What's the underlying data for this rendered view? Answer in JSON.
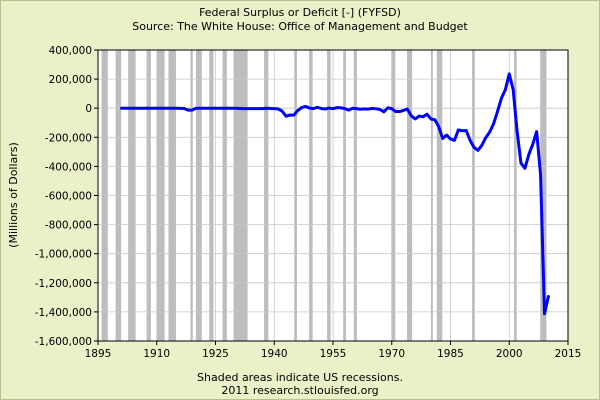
{
  "chart_data": {
    "type": "line",
    "title": "Federal Surplus or Deficit [-] (FYFSD)",
    "subtitle": "Source: The White House: Office of Management and Budget",
    "xlabel": "",
    "ylabel": "(Millions of Dollars)",
    "note": "Shaded areas indicate US recessions.",
    "credit": "2011 research.stlouisfed.org",
    "xlim": [
      1895,
      2015
    ],
    "ylim": [
      -1600000,
      400000
    ],
    "x_ticks": [
      "1895",
      "1910",
      "1925",
      "1940",
      "1955",
      "1970",
      "1985",
      "2000",
      "2015"
    ],
    "y_ticks": [
      "400,000",
      "200,000",
      "0",
      "-200,000",
      "-400,000",
      "-600,000",
      "-800,000",
      "-1,000,000",
      "-1,200,000",
      "-1,400,000",
      "-1,600,000"
    ],
    "grid": true,
    "legend": "none",
    "colors": {
      "line": "#0000ff",
      "recession": "#bdbdbd",
      "plot_bg": "#ffffff",
      "page_bg": "#eaf0c7"
    },
    "recessions": [
      [
        1895.9,
        1897.5
      ],
      [
        1899.5,
        1900.9
      ],
      [
        1902.7,
        1904.6
      ],
      [
        1907.4,
        1908.5
      ],
      [
        1910.0,
        1912.0
      ],
      [
        1913.0,
        1914.9
      ],
      [
        1918.6,
        1919.2
      ],
      [
        1920.0,
        1921.5
      ],
      [
        1923.4,
        1924.5
      ],
      [
        1926.8,
        1927.9
      ],
      [
        1929.6,
        1933.2
      ],
      [
        1937.4,
        1938.5
      ],
      [
        1945.1,
        1945.8
      ],
      [
        1948.9,
        1949.8
      ],
      [
        1953.5,
        1954.4
      ],
      [
        1957.6,
        1958.3
      ],
      [
        1960.3,
        1961.1
      ],
      [
        1969.9,
        1970.9
      ],
      [
        1973.9,
        1975.2
      ],
      [
        1980.0,
        1980.5
      ],
      [
        1981.5,
        1982.9
      ],
      [
        1990.5,
        1991.2
      ],
      [
        2001.2,
        2001.9
      ],
      [
        2007.9,
        2009.5
      ]
    ],
    "series": [
      {
        "x": [
          1901,
          1905,
          1910,
          1915,
          1917,
          1918,
          1919,
          1920,
          1925,
          1930,
          1932,
          1935,
          1937,
          1938,
          1940,
          1941,
          1942,
          1943,
          1944,
          1945,
          1946,
          1947,
          1948,
          1949,
          1950,
          1951,
          1952,
          1953,
          1954,
          1955,
          1956,
          1957,
          1958,
          1959,
          1960,
          1961,
          1962,
          1963,
          1964,
          1965,
          1966,
          1967,
          1968,
          1969,
          1970,
          1971,
          1972,
          1973,
          1974,
          1975,
          1976,
          1977,
          1978,
          1979,
          1980,
          1981,
          1982,
          1983,
          1984,
          1985,
          1986,
          1987,
          1988,
          1989,
          1990,
          1991,
          1992,
          1993,
          1994,
          1995,
          1996,
          1997,
          1998,
          1999,
          2000,
          2001,
          2002,
          2003,
          2004,
          2005,
          2006,
          2007,
          2008,
          2009,
          2010
        ],
        "y": [
          0,
          0,
          0,
          0,
          -2000,
          -13000,
          -13000,
          0,
          0,
          0,
          -3000,
          -3000,
          -3000,
          0,
          -3000,
          -5000,
          -20000,
          -55000,
          -47000,
          -48000,
          -16000,
          4000,
          12000,
          1000,
          -3000,
          6000,
          -2000,
          -6000,
          1000,
          -3000,
          4000,
          3000,
          -3000,
          -13000,
          0,
          -3000,
          -7000,
          -5000,
          -6000,
          -1000,
          -4000,
          -9000,
          -25000,
          3000,
          -3000,
          -23000,
          -23000,
          -15000,
          -6000,
          -53000,
          -74000,
          -54000,
          -59000,
          -41000,
          -74000,
          -79000,
          -128000,
          -208000,
          -185000,
          -212000,
          -221000,
          -150000,
          -155000,
          -153000,
          -221000,
          -269000,
          -290000,
          -255000,
          -203000,
          -164000,
          -107000,
          -22000,
          69000,
          126000,
          236000,
          128000,
          -158000,
          -378000,
          -413000,
          -318000,
          -248000,
          -161000,
          -459000,
          -1413000,
          -1294000
        ]
      }
    ]
  }
}
